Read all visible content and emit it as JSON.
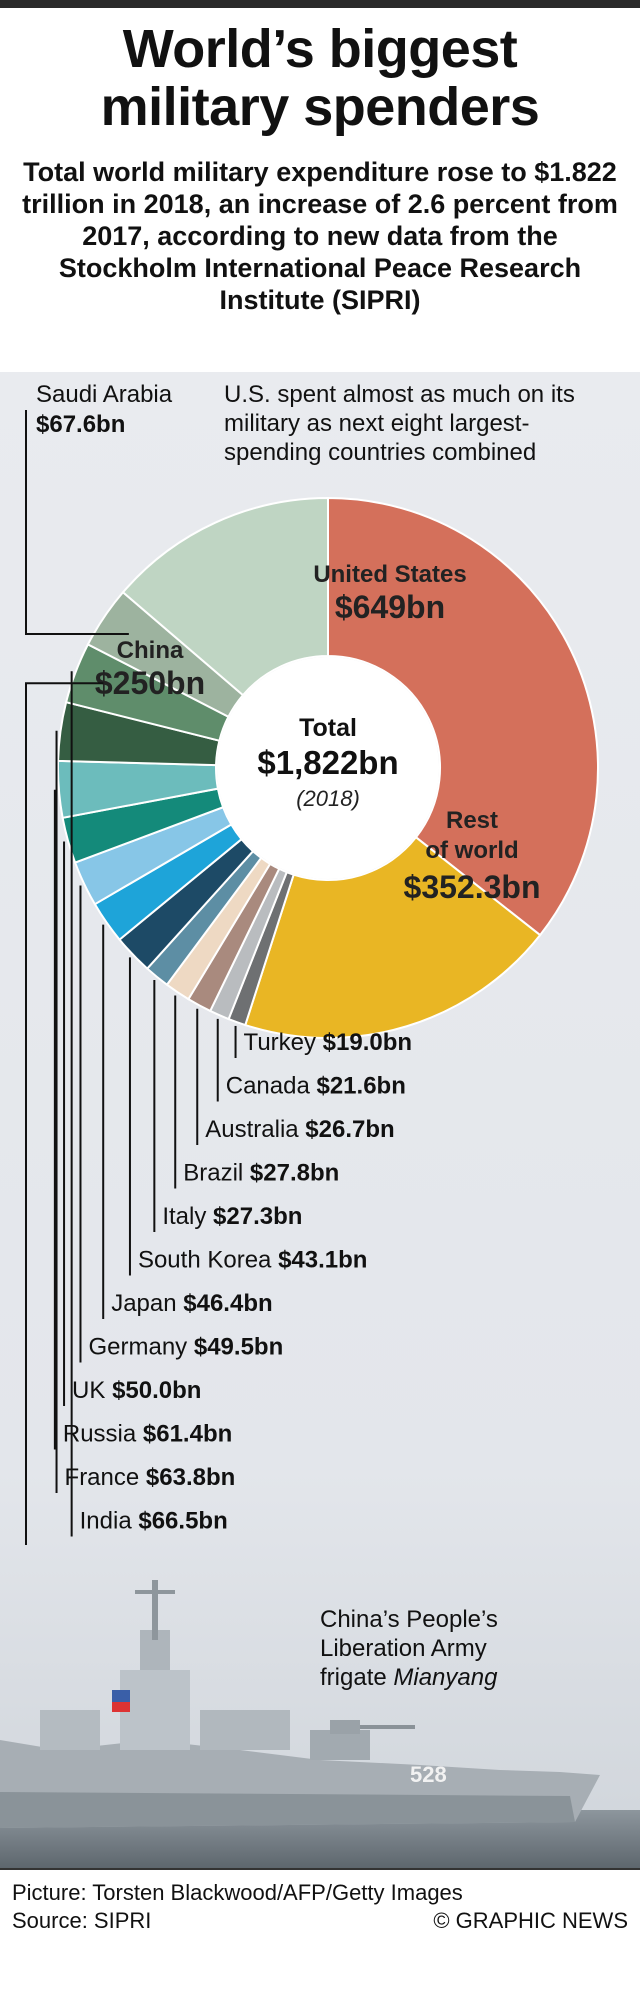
{
  "header": {
    "title_line1": "World’s biggest",
    "title_line2": "military spenders",
    "subtitle": "Total world military expenditure rose to $1.822 trillion in 2018, an increase of 2.6 percent from 2017, according to new data from the Stockholm International Peace Research Institute (SIPRI)"
  },
  "annotation": {
    "note": "U.S. spent almost as much on its military as next eight largest-spending countries combined",
    "saudi_name": "Saudi Arabia",
    "saudi_value": "$67.6bn"
  },
  "center": {
    "label": "Total",
    "value": "$1,822bn",
    "year": "(2018)"
  },
  "colors": {
    "us": "#d4705b",
    "rest": "#e9b624",
    "china": "#bfd5c3",
    "saudi": "#9db39f",
    "india": "#5f8d6b",
    "france": "#355d42",
    "russia": "#6cbcbc",
    "uk": "#148a7a",
    "germany": "#87c6e7",
    "japan": "#1ea4d9",
    "south_korea": "#1d4a66",
    "italy": "#5d8ea4",
    "brazil": "#eed9c3",
    "australia": "#a98a7e",
    "canada": "#b9bcbf",
    "turkey": "#6e7072"
  },
  "chart_data": {
    "type": "pie",
    "unit": "$bn",
    "total": 1822,
    "slices": [
      {
        "name": "United States",
        "value": 649,
        "label": "$649bn",
        "color": "#d4705b"
      },
      {
        "name": "Rest of world",
        "value": 352.3,
        "label": "$352.3bn",
        "color": "#e9b624"
      },
      {
        "name": "Turkey",
        "value": 19.0,
        "label": "$19.0bn",
        "color": "#6e7072"
      },
      {
        "name": "Canada",
        "value": 21.6,
        "label": "$21.6bn",
        "color": "#b9bcbf"
      },
      {
        "name": "Australia",
        "value": 26.7,
        "label": "$26.7bn",
        "color": "#a98a7e"
      },
      {
        "name": "Brazil",
        "value": 27.8,
        "label": "$27.8bn",
        "color": "#eed9c3"
      },
      {
        "name": "Italy",
        "value": 27.3,
        "label": "$27.3bn",
        "color": "#5d8ea4"
      },
      {
        "name": "South Korea",
        "value": 43.1,
        "label": "$43.1bn",
        "color": "#1d4a66"
      },
      {
        "name": "Japan",
        "value": 46.4,
        "label": "$46.4bn",
        "color": "#1ea4d9"
      },
      {
        "name": "Germany",
        "value": 49.5,
        "label": "$49.5bn",
        "color": "#87c6e7"
      },
      {
        "name": "UK",
        "value": 50.0,
        "label": "$50.0bn",
        "color": "#148a7a"
      },
      {
        "name": "Russia",
        "value": 61.4,
        "label": "$61.4bn",
        "color": "#6cbcbc"
      },
      {
        "name": "France",
        "value": 63.8,
        "label": "$63.8bn",
        "color": "#355d42"
      },
      {
        "name": "India",
        "value": 66.5,
        "label": "$66.5bn",
        "color": "#5f8d6b"
      },
      {
        "name": "Saudi Arabia",
        "value": 67.6,
        "label": "$67.6bn",
        "color": "#9db39f"
      },
      {
        "name": "China",
        "value": 250,
        "label": "$250bn",
        "color": "#bfd5c3"
      }
    ],
    "inside_labels": [
      {
        "name": "United States",
        "line1": "United States",
        "line2": "$649bn"
      },
      {
        "name": "China",
        "line1": "China",
        "line2": "$250bn"
      },
      {
        "name": "Rest of world",
        "line1": "Rest",
        "line2": "of world",
        "line3": "$352.3bn"
      }
    ]
  },
  "photo": {
    "caption_line1": "China’s People’s",
    "caption_line2": "Liberation Army",
    "caption_line3_prefix": "frigate ",
    "caption_ship": "Mianyang",
    "hull_number": "528"
  },
  "footer": {
    "credit": "Picture: Torsten Blackwood/AFP/Getty Images",
    "source": "Source: SIPRI",
    "brand": "© GRAPHIC NEWS"
  }
}
